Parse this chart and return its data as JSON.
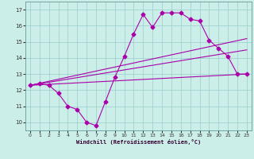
{
  "title": "",
  "xlabel": "Windchill (Refroidissement éolien,°C)",
  "bg_color": "#cceee8",
  "line_color": "#aa00aa",
  "grid_color": "#99cccc",
  "xlim": [
    -0.5,
    23.5
  ],
  "ylim": [
    9.5,
    17.5
  ],
  "yticks": [
    10,
    11,
    12,
    13,
    14,
    15,
    16,
    17
  ],
  "xticks": [
    0,
    1,
    2,
    3,
    4,
    5,
    6,
    7,
    8,
    9,
    10,
    11,
    12,
    13,
    14,
    15,
    16,
    17,
    18,
    19,
    20,
    21,
    22,
    23
  ],
  "main_x": [
    0,
    1,
    2,
    3,
    4,
    5,
    6,
    7,
    8,
    9,
    10,
    11,
    12,
    13,
    14,
    15,
    16,
    17,
    18,
    19,
    20,
    21,
    22,
    23
  ],
  "main_y": [
    12.3,
    12.4,
    12.3,
    11.8,
    11.0,
    10.8,
    10.0,
    9.8,
    11.3,
    12.8,
    14.1,
    15.5,
    16.7,
    15.9,
    16.8,
    16.8,
    16.8,
    16.4,
    16.3,
    15.1,
    14.6,
    14.1,
    13.0,
    13.0
  ],
  "trend1_x": [
    0,
    23
  ],
  "trend1_y": [
    12.3,
    13.0
  ],
  "trend2_x": [
    0,
    23
  ],
  "trend2_y": [
    12.3,
    14.5
  ],
  "trend3_x": [
    0,
    23
  ],
  "trend3_y": [
    12.3,
    15.2
  ],
  "marker": "D",
  "markersize": 2.5,
  "linewidth": 0.8,
  "trend_linewidth": 0.8
}
